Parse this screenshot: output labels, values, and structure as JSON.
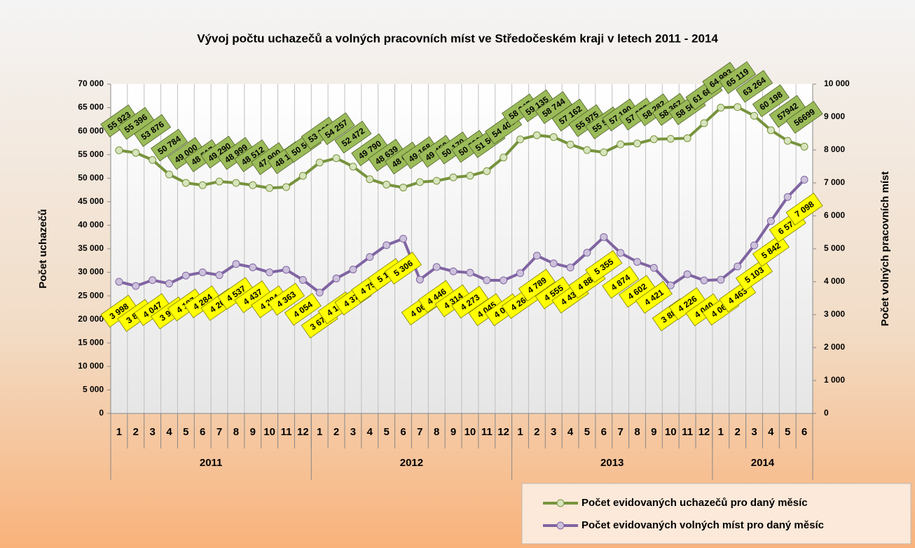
{
  "chart_data": {
    "type": "line",
    "title": "Vývoj počtu uchazečů a volných pracovních míst ve Středočeském kraji v letech 2011 - 2014",
    "ylabel": "Počet uchazečů",
    "y2label": "Počet volných pracovních míst",
    "categories": [
      "1",
      "2",
      "3",
      "4",
      "5",
      "6",
      "7",
      "8",
      "9",
      "10",
      "11",
      "12",
      "1",
      "2",
      "3",
      "4",
      "5",
      "6",
      "7",
      "8",
      "9",
      "10",
      "11",
      "12",
      "1",
      "2",
      "3",
      "4",
      "5",
      "6",
      "7",
      "8",
      "9",
      "10",
      "11",
      "12",
      "1",
      "2",
      "3",
      "4",
      "5",
      "6"
    ],
    "year_groups": [
      {
        "label": "2011",
        "span": 12
      },
      {
        "label": "2012",
        "span": 12
      },
      {
        "label": "2013",
        "span": 12
      },
      {
        "label": "2014",
        "span": 6
      }
    ],
    "ylim": [
      0,
      70000
    ],
    "yticks": [
      0,
      {
        "value": 5000,
        "label": "5 000"
      },
      {
        "value": 10000,
        "label": "10 000"
      },
      {
        "value": 15000,
        "label": "15 000"
      },
      {
        "value": 20000,
        "label": "20 000"
      },
      {
        "value": 25000,
        "label": "25 000"
      },
      {
        "value": 30000,
        "label": "30 000"
      },
      {
        "value": 35000,
        "label": "35 000"
      },
      {
        "value": 40000,
        "label": "40 000"
      },
      {
        "value": 45000,
        "label": "45 000"
      },
      {
        "value": 50000,
        "label": "50 000"
      },
      {
        "value": 55000,
        "label": "55 000"
      },
      {
        "value": 60000,
        "label": "60 000"
      },
      {
        "value": 65000,
        "label": "65 000"
      },
      {
        "value": 70000,
        "label": "70 000"
      }
    ],
    "y2lim": [
      0,
      10000
    ],
    "y2ticks": [
      0,
      {
        "value": 1000,
        "label": "1 000"
      },
      {
        "value": 2000,
        "label": "2 000"
      },
      {
        "value": 3000,
        "label": "3 000"
      },
      {
        "value": 4000,
        "label": "4 000"
      },
      {
        "value": 5000,
        "label": "5 000"
      },
      {
        "value": 6000,
        "label": "6 000"
      },
      {
        "value": 7000,
        "label": "7 000"
      },
      {
        "value": 8000,
        "label": "8 000"
      },
      {
        "value": 9000,
        "label": "9 000"
      },
      {
        "value": 10000,
        "label": "10 000"
      }
    ],
    "grid": true,
    "legend": "lower right",
    "series": [
      {
        "name": "Počet evidovaných uchazečů pro daný měsíc",
        "color": "#77933c",
        "marker": "#d7e4bd",
        "label_color": "#9bbb59",
        "axis": "y",
        "values": [
          55923,
          55396,
          53876,
          50784,
          49000,
          48517,
          49290,
          48999,
          48512,
          47900,
          48100,
          50500,
          53330,
          54257,
          52472,
          49790,
          48639,
          48021,
          49168,
          49452,
          50170,
          50526,
          51500,
          54400,
          58247,
          59135,
          58744,
          57162,
          55975,
          55500,
          57190,
          57377,
          58282,
          58367,
          58500,
          61688,
          64993,
          65119,
          63264,
          60198,
          57942,
          56699
        ],
        "value_labels": [
          "55 923",
          "55 396",
          "53 876",
          "50 784",
          "49 000",
          "48 517",
          "49 290",
          "48 999",
          "48 512",
          "47 900",
          "48 100",
          "50 500",
          "53 330",
          "54 257",
          "52 472",
          "49 790",
          "48 639",
          "48 021",
          "49 168",
          "49 452",
          "50 170",
          "50 526",
          "51 500",
          "54 400",
          "58 247",
          "59 135",
          "58 744",
          "57 162",
          "55 975",
          "55 500",
          "57 190",
          "57 377",
          "58 282",
          "58 367",
          "58 500",
          "61 688",
          "64 993",
          "65 119",
          "63 264",
          "60 198",
          "57942",
          "56699"
        ]
      },
      {
        "name": "Počet evidovaných volných míst pro daný měsíc",
        "color": "#8064a2",
        "marker": "#ccc1da",
        "label_color": "#ffff00",
        "axis": "y2",
        "values": [
          3998,
          3870,
          4047,
          3945,
          4187,
          4284,
          4200,
          4537,
          4437,
          4284,
          4363,
          4054,
          3670,
          4100,
          4370,
          4750,
          5110,
          5306,
          4065,
          4446,
          4314,
          4273,
          4045,
          4041,
          4260,
          4789,
          4555,
          4430,
          4880,
          5355,
          4874,
          4602,
          4421,
          3888,
          4226,
          4040,
          4060,
          4463,
          5103,
          5842,
          6573,
          7098
        ],
        "value_labels": [
          "3 998",
          "3 870",
          "4 047",
          "3 945",
          "4 187",
          "4 284",
          "4 200",
          "4 537",
          "4 437",
          "4 284",
          "4 363",
          "4 054",
          "3 670",
          "4 100",
          "4 370",
          "4 750",
          "5 110",
          "5 306",
          "4 065",
          "4 446",
          "4 314",
          "4 273",
          "4 045",
          "4 041",
          "4 260",
          "4 789",
          "4 555",
          "4 430",
          "4 880",
          "5 355",
          "4 874",
          "4 602",
          "4 421",
          "3 888",
          "4 226",
          "4 040",
          "4 060",
          "4 463",
          "5 103",
          "5 842",
          "6 573",
          "7 098"
        ]
      }
    ]
  }
}
